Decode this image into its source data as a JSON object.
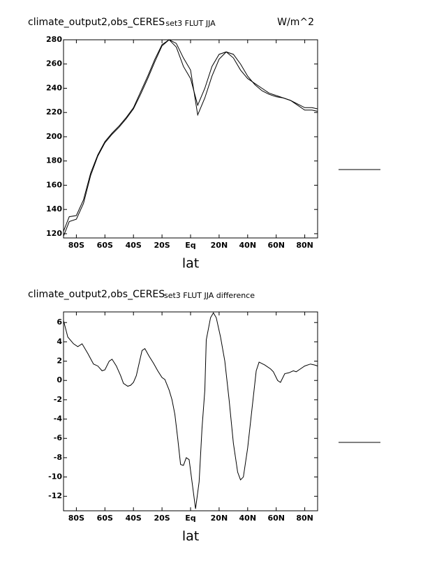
{
  "chart_data": [
    {
      "type": "line",
      "title": "climate_output2,obs_CERES",
      "subtitle": "set3 FLUT JJA",
      "units": "W/m^2",
      "xlabel": "lat",
      "x": [
        -89,
        -85,
        -80,
        -75,
        -70,
        -65,
        -60,
        -55,
        -50,
        -45,
        -40,
        -35,
        -30,
        -25,
        -20,
        -15,
        -10,
        -5,
        0,
        5,
        10,
        15,
        20,
        25,
        30,
        35,
        40,
        45,
        50,
        55,
        60,
        65,
        70,
        75,
        80,
        85,
        89
      ],
      "series": [
        {
          "color": "#000000",
          "values": [
            118,
            130,
            132,
            145,
            168,
            184,
            195,
            202,
            208,
            215,
            223,
            235,
            248,
            262,
            275,
            280,
            274,
            258,
            248,
            226,
            240,
            258,
            268,
            270,
            265,
            255,
            248,
            244,
            240,
            236,
            234,
            232,
            230,
            226,
            222,
            222,
            221
          ]
        },
        {
          "color": "#000000",
          "values": [
            122,
            134,
            135,
            148,
            170,
            185,
            196,
            203,
            209,
            216,
            224,
            237,
            250,
            264,
            276,
            280,
            277,
            265,
            255,
            218,
            232,
            250,
            264,
            270,
            268,
            260,
            250,
            243,
            238,
            235,
            233,
            232,
            230,
            227,
            224,
            224,
            223
          ]
        }
      ],
      "xlim": [
        -89,
        89
      ],
      "xticks": [
        {
          "value": -80,
          "label": "80S"
        },
        {
          "value": -60,
          "label": "60S"
        },
        {
          "value": -40,
          "label": "40S"
        },
        {
          "value": -20,
          "label": "20S"
        },
        {
          "value": 0,
          "label": "Eq"
        },
        {
          "value": 20,
          "label": "20N"
        },
        {
          "value": 40,
          "label": "40N"
        },
        {
          "value": 60,
          "label": "60N"
        },
        {
          "value": 80,
          "label": "80N"
        }
      ],
      "ylim": [
        116.5,
        280
      ],
      "yticks": [
        120,
        140,
        160,
        180,
        200,
        220,
        240,
        260,
        280
      ]
    },
    {
      "type": "line",
      "title": "climate_output2,obs_CERES",
      "subtitle": "set3 FLUT JJA difference",
      "xlabel": "lat",
      "x": [
        -89,
        -86,
        -82,
        -79,
        -76,
        -72,
        -68,
        -65,
        -62,
        -60,
        -57,
        -55,
        -52,
        -49,
        -47,
        -44,
        -42,
        -40,
        -38,
        -34,
        -32,
        -29,
        -26,
        -23,
        -20,
        -18,
        -15,
        -13,
        -11,
        -9,
        -7,
        -5,
        -3,
        -1,
        3.5,
        6,
        8,
        10,
        11,
        14,
        16,
        18,
        21,
        24,
        27,
        30,
        33,
        35,
        37,
        40,
        43,
        46,
        48,
        52,
        56,
        58,
        61,
        63,
        66,
        69,
        72,
        74,
        77,
        80,
        84,
        87,
        89
      ],
      "values": [
        6.2,
        4.5,
        3.8,
        3.5,
        3.8,
        2.8,
        1.7,
        1.5,
        1.0,
        1.1,
        2.0,
        2.2,
        1.5,
        0.5,
        -0.3,
        -0.6,
        -0.5,
        -0.2,
        0.5,
        3.1,
        3.3,
        2.5,
        1.8,
        1.0,
        0.3,
        0.1,
        -1.0,
        -2.0,
        -3.5,
        -6.0,
        -8.7,
        -8.8,
        -8.0,
        -8.2,
        -13.3,
        -10.5,
        -5,
        -1,
        4.2,
        6.5,
        7.0,
        6.5,
        4.5,
        2.0,
        -2,
        -6.5,
        -9.5,
        -10.3,
        -10.0,
        -7,
        -3,
        1.0,
        1.9,
        1.6,
        1.2,
        0.9,
        0.0,
        -0.2,
        0.7,
        0.8,
        1.0,
        0.9,
        1.2,
        1.5,
        1.7,
        1.6,
        1.5
      ],
      "color": "#000000",
      "xlim": [
        -89,
        89
      ],
      "xticks": [
        {
          "value": -80,
          "label": "80S"
        },
        {
          "value": -60,
          "label": "60S"
        },
        {
          "value": -40,
          "label": "40S"
        },
        {
          "value": -20,
          "label": "20S"
        },
        {
          "value": 0,
          "label": "Eq"
        },
        {
          "value": 20,
          "label": "20N"
        },
        {
          "value": 40,
          "label": "40N"
        },
        {
          "value": 60,
          "label": "60N"
        },
        {
          "value": 80,
          "label": "80N"
        }
      ],
      "ylim": [
        -13.5,
        7.1
      ],
      "yticks": [
        6,
        4,
        2,
        0,
        -2,
        -4,
        -6,
        -8,
        -10,
        -12
      ]
    }
  ]
}
